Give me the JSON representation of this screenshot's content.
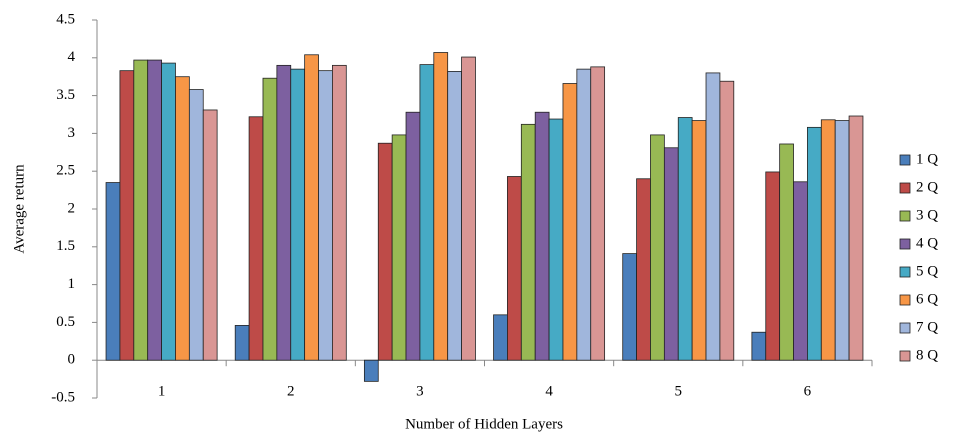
{
  "chart_data": {
    "type": "bar",
    "x_label": "Number of Hidden Layers",
    "y_label": "Average return",
    "categories": [
      "1",
      "2",
      "3",
      "4",
      "5",
      "6"
    ],
    "series": [
      {
        "name": "1 Q",
        "color": "#4a7ebb",
        "values": [
          2.35,
          0.46,
          -0.28,
          0.6,
          1.41,
          0.37
        ]
      },
      {
        "name": "2 Q",
        "color": "#be4b48",
        "values": [
          3.83,
          3.22,
          2.87,
          2.43,
          2.4,
          2.49
        ]
      },
      {
        "name": "3 Q",
        "color": "#98b954",
        "values": [
          3.97,
          3.73,
          2.98,
          3.12,
          2.98,
          2.86
        ]
      },
      {
        "name": "4 Q",
        "color": "#7d60a0",
        "values": [
          3.97,
          3.9,
          3.28,
          3.28,
          2.81,
          2.36
        ]
      },
      {
        "name": "5 Q",
        "color": "#46aac5",
        "values": [
          3.93,
          3.85,
          3.91,
          3.19,
          3.21,
          3.08
        ]
      },
      {
        "name": "6 Q",
        "color": "#f79646",
        "values": [
          3.75,
          4.04,
          4.07,
          3.66,
          3.17,
          3.18
        ]
      },
      {
        "name": "7 Q",
        "color": "#a0b6dc",
        "values": [
          3.58,
          3.83,
          3.82,
          3.85,
          3.8,
          3.17
        ]
      },
      {
        "name": "8 Q",
        "color": "#d99694",
        "values": [
          3.31,
          3.9,
          4.01,
          3.88,
          3.69,
          3.23
        ]
      }
    ],
    "ylim": [
      -0.5,
      4.5
    ],
    "yticks": [
      -0.5,
      0,
      0.5,
      1,
      1.5,
      2,
      2.5,
      3,
      3.5,
      4,
      4.5
    ],
    "grid": false,
    "legend": "right"
  }
}
